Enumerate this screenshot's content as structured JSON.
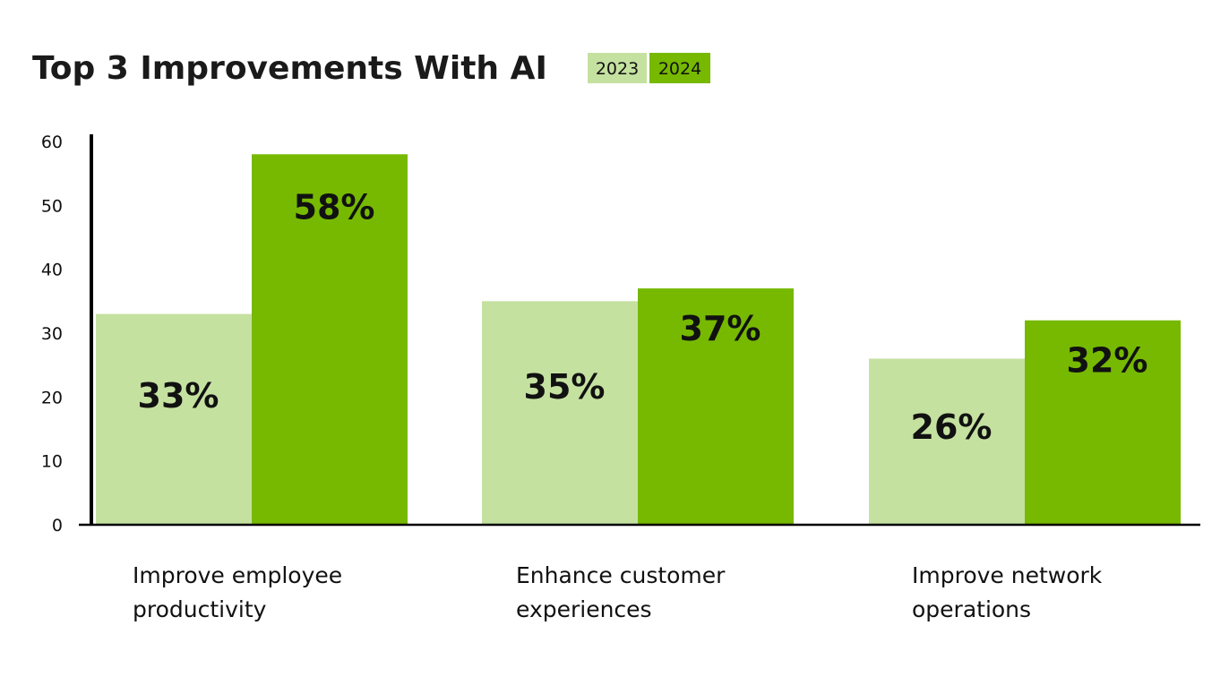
{
  "chart_data": {
    "type": "bar",
    "title": "Top 3 Improvements With AI",
    "categories": [
      [
        "Improve employee",
        "productivity"
      ],
      [
        "Enhance customer",
        "experiences"
      ],
      [
        "Improve network",
        "operations"
      ]
    ],
    "series": [
      {
        "name": "2023",
        "color": "#c5e1a0",
        "values": [
          33,
          35,
          26
        ],
        "labels": [
          "33%",
          "35%",
          "26%"
        ]
      },
      {
        "name": "2024",
        "color": "#76b900",
        "values": [
          58,
          37,
          32
        ],
        "labels": [
          "58%",
          "37%",
          "32%"
        ]
      }
    ],
    "ylim": [
      0,
      60
    ],
    "yticks": [
      "0",
      "10",
      "20",
      "30",
      "40",
      "50",
      "60"
    ],
    "grid": false,
    "legend": "top, next to title",
    "xlabel": "",
    "ylabel": ""
  }
}
